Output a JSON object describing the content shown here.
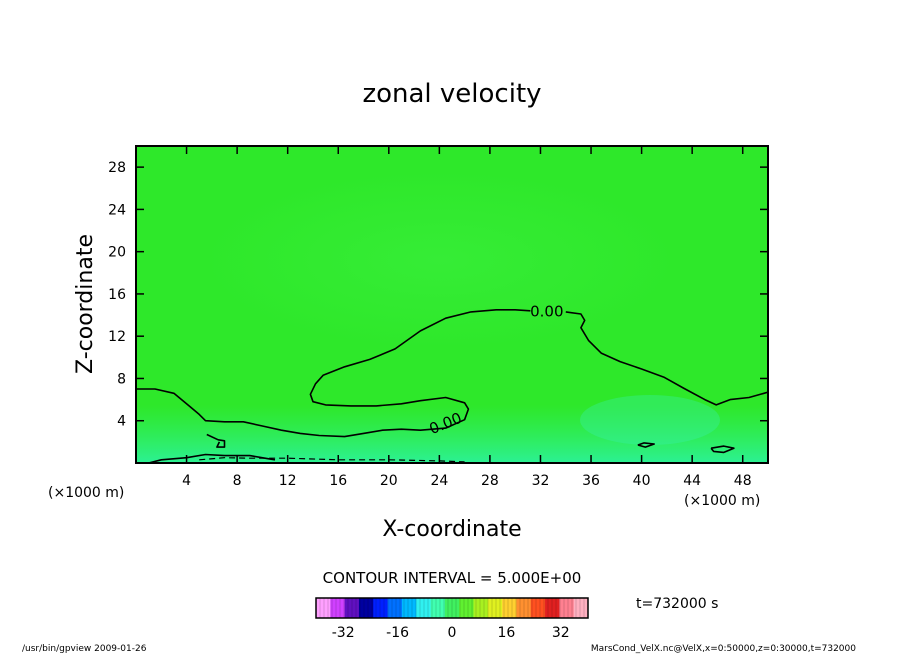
{
  "chart_data": {
    "type": "heatmap",
    "title": "zonal velocity",
    "xlabel": "X-coordinate",
    "ylabel": "Z-coordinate",
    "x_unit_label": "(×1000 m)",
    "y_unit_label": "(×1000 m)",
    "xlim": [
      0,
      50
    ],
    "ylim": [
      0,
      30
    ],
    "x_ticks": [
      4,
      8,
      12,
      16,
      20,
      24,
      28,
      32,
      36,
      40,
      44,
      48
    ],
    "y_ticks": [
      4,
      8,
      12,
      16,
      20,
      24,
      28
    ],
    "grid": false,
    "contour_interval_label": "CONTOUR INTERVAL = 5.000E+00",
    "contour_labels": [
      {
        "text": "0.00",
        "x": 32.5,
        "y": 14.3,
        "angle": 0
      },
      {
        "text": "0.00",
        "x": 24.5,
        "y": 3.7,
        "angle": -22
      }
    ],
    "zero_contours": [
      {
        "name": "upper",
        "points": [
          [
            0,
            7
          ],
          [
            1.5,
            7
          ],
          [
            3,
            6.6
          ],
          [
            4.2,
            5.4
          ],
          [
            5,
            4.6
          ],
          [
            5.5,
            4
          ],
          [
            7,
            3.9
          ],
          [
            8.5,
            3.9
          ],
          [
            10,
            3.5
          ],
          [
            11.5,
            3.1
          ],
          [
            13,
            2.8
          ],
          [
            14.5,
            2.6
          ],
          [
            16.5,
            2.5
          ],
          [
            18,
            2.8
          ],
          [
            19.5,
            3.1
          ],
          [
            21,
            3.2
          ],
          [
            22.5,
            3.1
          ],
          [
            24.5,
            3.3
          ],
          [
            26,
            4.1
          ],
          [
            26.3,
            5.1
          ],
          [
            26,
            5.7
          ],
          [
            24.5,
            6.2
          ],
          [
            22.5,
            5.9
          ],
          [
            21,
            5.6
          ],
          [
            19,
            5.4
          ],
          [
            17,
            5.4
          ],
          [
            15,
            5.5
          ],
          [
            14,
            5.8
          ],
          [
            13.8,
            6.5
          ],
          [
            14.2,
            7.5
          ],
          [
            14.8,
            8.3
          ],
          [
            16.5,
            9.1
          ],
          [
            18.5,
            9.8
          ],
          [
            20.5,
            10.8
          ],
          [
            22.5,
            12.5
          ],
          [
            24.5,
            13.7
          ],
          [
            26.5,
            14.3
          ],
          [
            28.5,
            14.5
          ],
          [
            30,
            14.5
          ],
          [
            31.2,
            14.4
          ]
        ]
      },
      {
        "name": "upper-right",
        "points": [
          [
            34,
            14.3
          ],
          [
            35.2,
            14.1
          ],
          [
            35.5,
            13.5
          ],
          [
            35.2,
            12.8
          ],
          [
            35.8,
            11.6
          ],
          [
            36.8,
            10.4
          ],
          [
            38.3,
            9.6
          ],
          [
            40,
            8.9
          ],
          [
            41.8,
            8.1
          ],
          [
            43.3,
            7.1
          ],
          [
            45,
            6
          ],
          [
            45.9,
            5.5
          ],
          [
            47,
            6
          ],
          [
            48.5,
            6.2
          ],
          [
            50,
            6.7
          ]
        ]
      },
      {
        "name": "island-left",
        "points": [
          [
            5.6,
            2.7
          ],
          [
            6.5,
            2.2
          ],
          [
            7,
            2.1
          ],
          [
            7,
            1.5
          ],
          [
            6.4,
            1.5
          ],
          [
            6.6,
            2
          ]
        ]
      },
      {
        "name": "island-right-1",
        "points": [
          [
            39.7,
            1.7
          ],
          [
            40.2,
            1.9
          ],
          [
            41,
            1.8
          ],
          [
            40.3,
            1.5
          ],
          [
            39.7,
            1.7
          ]
        ]
      },
      {
        "name": "island-right-2",
        "points": [
          [
            45.5,
            1.4
          ],
          [
            46.5,
            1.6
          ],
          [
            47.3,
            1.4
          ],
          [
            46.5,
            1
          ],
          [
            45.7,
            1.1
          ],
          [
            45.5,
            1.4
          ]
        ]
      },
      {
        "name": "bottom",
        "points": [
          [
            1,
            0
          ],
          [
            2,
            0.3
          ],
          [
            4,
            0.5
          ],
          [
            5.5,
            0.8
          ],
          [
            7,
            0.7
          ],
          [
            9,
            0.7
          ],
          [
            10.5,
            0.4
          ],
          [
            11,
            0.3
          ]
        ]
      }
    ],
    "negative_contours": [
      {
        "name": "dashed-bottom",
        "points": [
          [
            5,
            0.3
          ],
          [
            7,
            0.5
          ],
          [
            9,
            0.45
          ],
          [
            12,
            0.45
          ],
          [
            16,
            0.3
          ],
          [
            20,
            0.3
          ],
          [
            24,
            0.2
          ],
          [
            26,
            0.1
          ]
        ]
      }
    ],
    "colorbar": {
      "min": -40,
      "max": 40,
      "ticks": [
        -32,
        -16,
        0,
        16,
        32
      ],
      "colors": [
        "#ffa0ff",
        "#d040ff",
        "#6010c0",
        "#0000a0",
        "#0020ff",
        "#0070ff",
        "#00b8ff",
        "#30f0f0",
        "#40ffb0",
        "#40f060",
        "#60f030",
        "#a8f020",
        "#e0f020",
        "#ffd030",
        "#ff9030",
        "#ff5020",
        "#e02020",
        "#ff8090",
        "#ffb0c0"
      ]
    }
  },
  "time_label": "t=732000 s",
  "footer_left": "/usr/bin/gpview  2009-01-26",
  "footer_right": "MarsCond_VelX.nc@VelX,x=0:50000,z=0:30000,t=732000"
}
